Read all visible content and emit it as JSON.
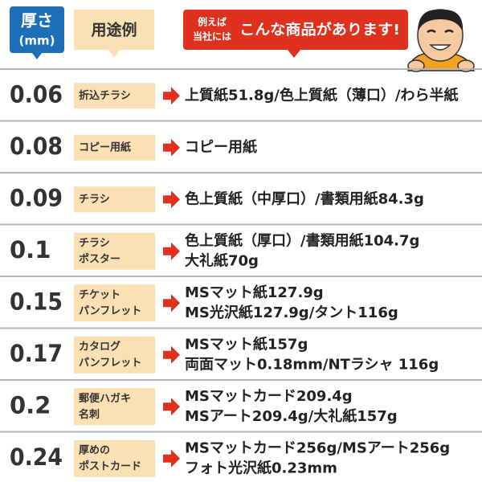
{
  "header": {
    "thickness_label": "厚さ",
    "thickness_unit": "(mm)",
    "usage_label": "用途例",
    "banner_small": [
      "例えば",
      "当社には"
    ],
    "banner_main": "こんな商品があります!"
  },
  "rows": [
    {
      "thickness": "0.06",
      "usage": [
        "折込チラシ"
      ],
      "products": [
        "上質紙51.8g/色上質紙（薄口）/わら半紙"
      ]
    },
    {
      "thickness": "0.08",
      "usage": [
        "コピー用紙"
      ],
      "products": [
        "コピー用紙"
      ]
    },
    {
      "thickness": "0.09",
      "usage": [
        "チラシ"
      ],
      "products": [
        "色上質紙（中厚口）/書類用紙84.3g"
      ]
    },
    {
      "thickness": "0.1",
      "usage": [
        "チラシ",
        "ポスター"
      ],
      "products": [
        "色上質紙（厚口）/書類用紙104.7g",
        "大礼紙70g"
      ]
    },
    {
      "thickness": "0.15",
      "usage": [
        "チケット",
        "パンフレット"
      ],
      "products": [
        "MSマット紙127.9g",
        "MS光沢紙127.9g/タント116g"
      ]
    },
    {
      "thickness": "0.17",
      "usage": [
        "カタログ",
        "パンフレット"
      ],
      "products": [
        "MSマット紙157g",
        "両面マット0.18mm/NTラシャ 116g"
      ]
    },
    {
      "thickness": "0.2",
      "usage": [
        "郵便ハガキ",
        "名刺"
      ],
      "products": [
        "MSマットカード209.4g",
        "MSアート209.4g/大礼紙157g"
      ]
    },
    {
      "thickness": "0.24",
      "usage": [
        "厚めの",
        "ポストカード"
      ],
      "products": [
        "MSマットカード256g/MSアート256g",
        "フォト光沢紙0.23mm"
      ]
    }
  ]
}
